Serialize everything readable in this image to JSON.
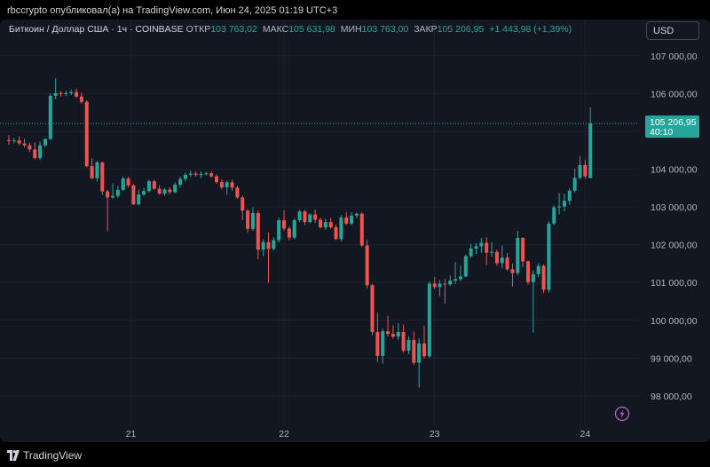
{
  "header": {
    "attribution": "rbccrypto опубликовал(а) на TradingView.com, Июн 24, 2025 01:19 UTC+3"
  },
  "legend": {
    "symbol": "Биткоин / Доллар США · 1ч · COINBASE",
    "open_label": "ОТКР",
    "open_value": "103 763,02",
    "high_label": "МАКС",
    "high_value": "105 631,98",
    "low_label": "МИН",
    "low_value": "103 763,00",
    "close_label": "ЗАКР",
    "close_value": "105 206,95",
    "change": "+1 443,98 (+1,39%)"
  },
  "currency_button": "USD",
  "price_label": {
    "price": "105 206,95",
    "countdown": "40:10"
  },
  "footer": {
    "brand": "TradingView"
  },
  "colors": {
    "background": "#131722",
    "up": "#26a69a",
    "down": "#ef5350",
    "grid": "#1e222d",
    "price_line": "#26a69a",
    "lightning": "#ba68c8"
  },
  "chart_data": {
    "type": "candlestick",
    "title": "Биткоин / Доллар США · 1ч · COINBASE",
    "y_axis": {
      "range": [
        97200,
        107300
      ],
      "tick_values": [
        98000,
        99000,
        100000,
        101000,
        102000,
        103000,
        104000,
        105000,
        106000,
        107000
      ],
      "tick_labels": [
        "98 000,00",
        "99 000,00",
        "100 000,00",
        "101 000,00",
        "102 000,00",
        "103 000,00",
        "104 000,00",
        "105 000,00",
        "106 000,00",
        "107 000,00"
      ]
    },
    "x_axis": {
      "labels": [
        {
          "label": "21",
          "index": 23.5
        },
        {
          "label": "22",
          "index": 53
        },
        {
          "label": "23",
          "index": 82
        },
        {
          "label": "24",
          "index": 111
        }
      ]
    },
    "last_price": 105206.95,
    "candles": [
      [
        104770,
        104900,
        104640,
        104750
      ],
      [
        104750,
        104830,
        104690,
        104760
      ],
      [
        104760,
        104870,
        104630,
        104680
      ],
      [
        104680,
        104800,
        104580,
        104630
      ],
      [
        104630,
        104700,
        104450,
        104520
      ],
      [
        104520,
        104710,
        104260,
        104290
      ],
      [
        104290,
        104730,
        104240,
        104630
      ],
      [
        104630,
        104810,
        104580,
        104800
      ],
      [
        104800,
        106000,
        104760,
        105940
      ],
      [
        105940,
        106400,
        105850,
        106010
      ],
      [
        106010,
        106060,
        105920,
        106000
      ],
      [
        106000,
        106070,
        105930,
        106010
      ],
      [
        106010,
        106110,
        105960,
        106040
      ],
      [
        106040,
        106130,
        105880,
        105920
      ],
      [
        105920,
        106020,
        105730,
        105780
      ],
      [
        105780,
        105820,
        104050,
        104080
      ],
      [
        104080,
        104290,
        103730,
        103760
      ],
      [
        103760,
        104220,
        103670,
        104180
      ],
      [
        104180,
        104190,
        103320,
        103410
      ],
      [
        103410,
        103450,
        102350,
        103250
      ],
      [
        103250,
        103620,
        103210,
        103290
      ],
      [
        103290,
        103560,
        103240,
        103450
      ],
      [
        103450,
        103800,
        103420,
        103750
      ],
      [
        103750,
        103800,
        103520,
        103570
      ],
      [
        103570,
        103610,
        103050,
        103070
      ],
      [
        103070,
        103460,
        103040,
        103330
      ],
      [
        103330,
        103500,
        103290,
        103420
      ],
      [
        103420,
        103720,
        103380,
        103680
      ],
      [
        103680,
        103720,
        103450,
        103480
      ],
      [
        103480,
        103570,
        103320,
        103350
      ],
      [
        103350,
        103500,
        103300,
        103460
      ],
      [
        103460,
        103520,
        103340,
        103390
      ],
      [
        103390,
        103650,
        103360,
        103590
      ],
      [
        103590,
        103800,
        103520,
        103740
      ],
      [
        103740,
        103910,
        103680,
        103850
      ],
      [
        103850,
        103960,
        103790,
        103880
      ],
      [
        103880,
        103940,
        103800,
        103850
      ],
      [
        103850,
        103940,
        103760,
        103870
      ],
      [
        103870,
        103930,
        103830,
        103890
      ],
      [
        103890,
        103940,
        103770,
        103810
      ],
      [
        103810,
        103860,
        103610,
        103660
      ],
      [
        103660,
        103740,
        103470,
        103520
      ],
      [
        103520,
        103700,
        103330,
        103650
      ],
      [
        103650,
        103720,
        103430,
        103510
      ],
      [
        103510,
        103560,
        103210,
        103250
      ],
      [
        103250,
        103300,
        102650,
        102900
      ],
      [
        102900,
        102940,
        102330,
        102420
      ],
      [
        102420,
        102990,
        102370,
        102840
      ],
      [
        102840,
        102910,
        101620,
        101870
      ],
      [
        101870,
        102140,
        101700,
        102070
      ],
      [
        102070,
        102330,
        101000,
        101890
      ],
      [
        101890,
        102200,
        101850,
        102120
      ],
      [
        102120,
        102710,
        102060,
        102650
      ],
      [
        102650,
        102910,
        102370,
        102430
      ],
      [
        102430,
        102480,
        102120,
        102190
      ],
      [
        102190,
        102700,
        102140,
        102650
      ],
      [
        102650,
        102920,
        102600,
        102880
      ],
      [
        102880,
        102920,
        102520,
        102600
      ],
      [
        102600,
        102830,
        102570,
        102800
      ],
      [
        102800,
        102930,
        102580,
        102660
      ],
      [
        102660,
        102720,
        102430,
        102460
      ],
      [
        102460,
        102690,
        102390,
        102600
      ],
      [
        102600,
        102710,
        102420,
        102460
      ],
      [
        102460,
        102530,
        102120,
        102150
      ],
      [
        102150,
        102780,
        102090,
        102720
      ],
      [
        102720,
        102860,
        102520,
        102560
      ],
      [
        102560,
        102860,
        102520,
        102770
      ],
      [
        102770,
        102850,
        102700,
        102820
      ],
      [
        102820,
        102860,
        101940,
        101980
      ],
      [
        101980,
        102130,
        100850,
        100930
      ],
      [
        100930,
        100960,
        99600,
        99690
      ],
      [
        99690,
        100200,
        98900,
        99060
      ],
      [
        99060,
        99780,
        98850,
        99710
      ],
      [
        99710,
        100120,
        99570,
        99640
      ],
      [
        99640,
        99870,
        99510,
        99570
      ],
      [
        99570,
        99920,
        99480,
        99690
      ],
      [
        99690,
        99890,
        99140,
        99200
      ],
      [
        99200,
        99580,
        99100,
        99480
      ],
      [
        99480,
        99700,
        98820,
        98880
      ],
      [
        98880,
        99520,
        98220,
        99390
      ],
      [
        99390,
        99860,
        98990,
        99050
      ],
      [
        99050,
        101030,
        99010,
        100970
      ],
      [
        100970,
        101150,
        100830,
        100880
      ],
      [
        100880,
        101070,
        100640,
        100970
      ],
      [
        100970,
        101100,
        100440,
        100950
      ],
      [
        100950,
        101190,
        100910,
        101050
      ],
      [
        101050,
        101540,
        100960,
        101090
      ],
      [
        101090,
        101450,
        101040,
        101160
      ],
      [
        101160,
        101740,
        101140,
        101700
      ],
      [
        101700,
        102020,
        101650,
        101900
      ],
      [
        101900,
        102040,
        101750,
        101960
      ],
      [
        101960,
        102180,
        101780,
        102050
      ],
      [
        102050,
        102200,
        101460,
        101790
      ],
      [
        101790,
        102070,
        101680,
        101810
      ],
      [
        101810,
        101870,
        101440,
        101510
      ],
      [
        101510,
        101980,
        101380,
        101660
      ],
      [
        101660,
        101780,
        101310,
        101350
      ],
      [
        101350,
        101500,
        100890,
        101250
      ],
      [
        101250,
        102370,
        101190,
        102180
      ],
      [
        102180,
        102200,
        101410,
        101560
      ],
      [
        101560,
        101580,
        100940,
        101010
      ],
      [
        101010,
        101330,
        99680,
        101220
      ],
      [
        101220,
        101510,
        101140,
        101440
      ],
      [
        101440,
        101480,
        100720,
        100810
      ],
      [
        100810,
        102620,
        100740,
        102560
      ],
      [
        102560,
        103040,
        102520,
        102990
      ],
      [
        102990,
        103370,
        102800,
        103010
      ],
      [
        103010,
        103350,
        102880,
        103160
      ],
      [
        103160,
        103490,
        103050,
        103430
      ],
      [
        103430,
        104010,
        103380,
        103770
      ],
      [
        103770,
        104350,
        103730,
        104110
      ],
      [
        104110,
        104250,
        103750,
        103810
      ],
      [
        103763.02,
        105631.98,
        103763.0,
        105206.95
      ]
    ]
  }
}
